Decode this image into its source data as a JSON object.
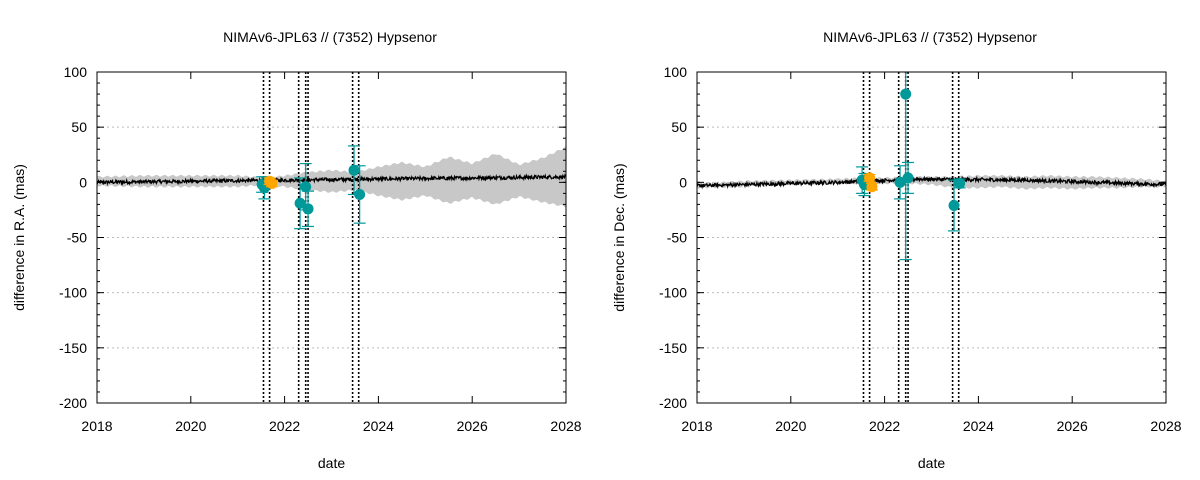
{
  "chart_data": [
    {
      "type": "scatter",
      "title": "NIMAv6-JPL63 // (7352) Hypsenor",
      "xlabel": "date",
      "ylabel": "difference in R.A. (mas)",
      "xlim": [
        2018,
        2028
      ],
      "ylim": [
        -200,
        100
      ],
      "x_ticks": [
        "2018",
        "2020",
        "2022",
        "2024",
        "2026",
        "2028"
      ],
      "y_ticks": [
        "100",
        "50",
        "0",
        "-50",
        "-100",
        "-150",
        "-200"
      ],
      "grid": true,
      "colors": {
        "line": "#000000",
        "band": "#c8c8c8",
        "obs_a": "#009999",
        "obs_b": "#ffa500",
        "vlines": "#000000",
        "grid": "#bbbbbb"
      },
      "vertical_lines": [
        2021.55,
        2021.68,
        2022.3,
        2022.45,
        2022.5,
        2023.45,
        2023.58
      ],
      "uncertainty_band": {
        "x": [
          2018.0,
          2019.0,
          2020.0,
          2021.0,
          2021.6,
          2022.0,
          2022.5,
          2023.0,
          2023.5,
          2024.0,
          2024.5,
          2025.0,
          2025.5,
          2026.0,
          2026.5,
          2027.0,
          2027.5,
          2028.0
        ],
        "upper": [
          5,
          6,
          6,
          6,
          4,
          6,
          9,
          11,
          9,
          14,
          18,
          14,
          23,
          17,
          26,
          16,
          22,
          32
        ],
        "lower": [
          -3,
          -4,
          -4,
          -4,
          -2,
          -4,
          -7,
          -9,
          -7,
          -12,
          -16,
          -12,
          -19,
          -14,
          -20,
          -13,
          -18,
          -22
        ]
      },
      "trend_line": {
        "x": [
          2018,
          2028
        ],
        "y": [
          0,
          5
        ]
      },
      "series": [
        {
          "x": [
            2021.52,
            2021.57,
            2022.33,
            2022.45,
            2022.5,
            2023.48,
            2023.6
          ],
          "y": [
            -2,
            -5,
            -19,
            -4,
            -24,
            11,
            -11
          ],
          "yerr": [
            7,
            10,
            23,
            21,
            16,
            22,
            26
          ]
        },
        {
          "x": [
            2021.68,
            2021.73
          ],
          "y": [
            1,
            -1
          ],
          "yerr": [
            3,
            3
          ]
        }
      ]
    },
    {
      "type": "scatter",
      "title": "NIMAv6-JPL63 // (7352) Hypsenor",
      "xlabel": "date",
      "ylabel": "difference in Dec. (mas)",
      "xlim": [
        2018,
        2028
      ],
      "ylim": [
        -200,
        100
      ],
      "x_ticks": [
        "2018",
        "2020",
        "2022",
        "2024",
        "2026",
        "2028"
      ],
      "y_ticks": [
        "100",
        "50",
        "0",
        "-50",
        "-100",
        "-150",
        "-200"
      ],
      "grid": true,
      "colors": {
        "line": "#000000",
        "band": "#c8c8c8",
        "obs_a": "#009999",
        "obs_b": "#ffa500",
        "vlines": "#000000",
        "grid": "#bbbbbb"
      },
      "vertical_lines": [
        2021.55,
        2021.68,
        2022.3,
        2022.45,
        2022.5,
        2023.45,
        2023.58
      ],
      "uncertainty_band": {
        "x": [
          2018.0,
          2019.0,
          2020.0,
          2021.0,
          2021.6,
          2022.0,
          2022.5,
          2023.0,
          2023.5,
          2024.0,
          2024.5,
          2025.0,
          2025.5,
          2026.0,
          2026.5,
          2027.0,
          2027.5,
          2028.0
        ],
        "upper": [
          -1,
          1,
          2,
          3,
          4,
          4,
          5,
          5,
          5,
          6,
          6,
          5,
          6,
          5,
          5,
          4,
          3,
          1
        ],
        "lower": [
          -5,
          -4,
          -2,
          -1,
          -1,
          -1,
          -1,
          -2,
          -5,
          -5,
          -4,
          -6,
          -5,
          -6,
          -5,
          -5,
          -4,
          -4
        ]
      },
      "trend_line": {
        "x": [
          2018,
          2021,
          2022.7,
          2025,
          2028
        ],
        "y": [
          -3,
          0,
          3,
          2,
          -2
        ]
      },
      "series": [
        {
          "x": [
            2021.52,
            2021.57,
            2022.33,
            2022.45,
            2022.5,
            2023.48,
            2023.6
          ],
          "y": [
            2,
            -2,
            0,
            80,
            4,
            -21,
            -1
          ],
          "yerr": [
            12,
            10,
            15,
            150,
            14,
            23,
            4
          ]
        },
        {
          "x": [
            2021.68,
            2021.73
          ],
          "y": [
            4,
            -4
          ],
          "yerr": [
            3,
            3
          ]
        }
      ]
    }
  ]
}
